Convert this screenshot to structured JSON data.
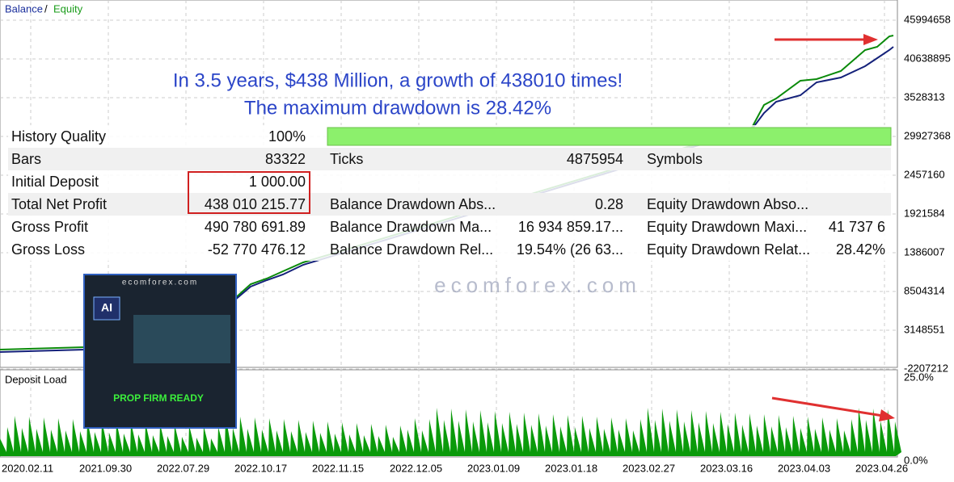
{
  "legend": {
    "balance": "Balance",
    "separator": "/",
    "equity": "Equity"
  },
  "y_axis_labels": [
    "45994658",
    "40638895",
    "3528313",
    "29927368",
    "2457160",
    "1921584",
    "1386007",
    "8504314",
    "3148551",
    "-2207212"
  ],
  "deposit_load": {
    "title": "Deposit Load",
    "ticks": [
      "25.0%",
      "0.0%"
    ]
  },
  "x_axis_labels": [
    "2020.02.11",
    "2021.09.30",
    "2022.07.29",
    "2022.10.17",
    "2022.11.15",
    "2022.12.05",
    "2023.01.09",
    "2023.01.18",
    "2023.02.27",
    "2023.03.16",
    "2023.04.03",
    "2023.04.26"
  ],
  "annotation": [
    "In 3.5 years, $438 Million, a growth of 438010 times!",
    "The maximum drawdown is 28.42%"
  ],
  "stats": {
    "rows": [
      [
        "History Quality",
        "100%"
      ],
      [
        "Bars",
        "83322",
        "Ticks",
        "4875954",
        "Symbols"
      ],
      [
        "Initial Deposit",
        "1 000.00"
      ],
      [
        "Total Net Profit",
        "438 010 215.77",
        "Balance Drawdown Abs...",
        "0.28",
        "Equity Drawdown Abso..."
      ],
      [
        "Gross Profit",
        "490 780 691.89",
        "Balance Drawdown Ma...",
        "16 934 859.17...",
        "Equity Drawdown Maxi...",
        "41 737 6"
      ],
      [
        "Gross Loss",
        "-52 770 476.12",
        "Balance Drawdown Rel...",
        "19.54% (26 63...",
        "Equity Drawdown Relat...",
        "28.42%"
      ]
    ]
  },
  "watermark": "ecomforex.com",
  "thumbnail": {
    "site": "ecomforex.com",
    "badge": "AI",
    "caption": "PROP FIRM READY"
  }
}
